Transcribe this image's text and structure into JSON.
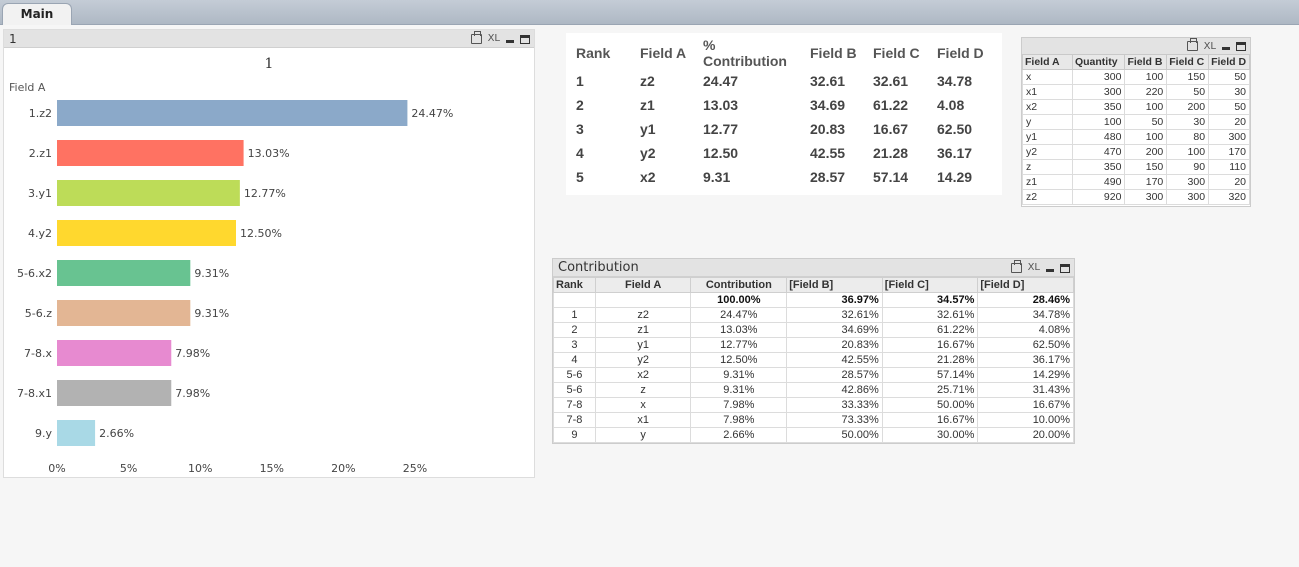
{
  "tabs": [
    {
      "label": "Main"
    }
  ],
  "chart_object": {
    "caption": "1",
    "icons": [
      "print-icon",
      "xl",
      "minimize-icon",
      "maximize-icon"
    ],
    "xl_label": "XL"
  },
  "chart_data": {
    "type": "bar",
    "orientation": "horizontal",
    "title": "1",
    "ylabel": "Field A",
    "categories": [
      "1.z2",
      "2.z1",
      "3.y1",
      "4.y2",
      "5-6.x2",
      "5-6.z",
      "7-8.x",
      "7-8.x1",
      "9.y"
    ],
    "values": [
      24.47,
      13.03,
      12.77,
      12.5,
      9.31,
      9.31,
      7.98,
      7.98,
      2.66
    ],
    "value_labels": [
      "24.47%",
      "13.03%",
      "12.77%",
      "12.50%",
      "9.31%",
      "9.31%",
      "7.98%",
      "7.98%",
      "2.66%"
    ],
    "colors": [
      "#8ba9c9",
      "#ff7262",
      "#bddc58",
      "#ffd82e",
      "#68c391",
      "#e3b694",
      "#e78ad0",
      "#b2b2b2",
      "#a9d9e6"
    ],
    "xlim": [
      0,
      25
    ],
    "xticks": [
      0,
      5,
      10,
      15,
      20,
      25
    ],
    "xtick_labels": [
      "0%",
      "5%",
      "10%",
      "15%",
      "20%",
      "25%"
    ],
    "grid": false,
    "legend": "none"
  },
  "straight_table": {
    "headers": [
      "Rank",
      "Field A",
      "% Contribution",
      "Field B",
      "Field C",
      "Field D"
    ],
    "rows": [
      [
        "1",
        "z2",
        "24.47",
        "32.61",
        "32.61",
        "34.78"
      ],
      [
        "2",
        "z1",
        "13.03",
        "34.69",
        "61.22",
        "4.08"
      ],
      [
        "3",
        "y1",
        "12.77",
        "20.83",
        "16.67",
        "62.50"
      ],
      [
        "4",
        "y2",
        "12.50",
        "42.55",
        "21.28",
        "36.17"
      ],
      [
        "5",
        "x2",
        "9.31",
        "28.57",
        "57.14",
        "14.29"
      ]
    ]
  },
  "small_table": {
    "xl_label": "XL",
    "headers": [
      "Field A",
      "Quantity",
      "Field B",
      "Field C",
      "Field D"
    ],
    "rows": [
      [
        "x",
        "300",
        "100",
        "150",
        "50"
      ],
      [
        "x1",
        "300",
        "220",
        "50",
        "30"
      ],
      [
        "x2",
        "350",
        "100",
        "200",
        "50"
      ],
      [
        "y",
        "100",
        "50",
        "30",
        "20"
      ],
      [
        "y1",
        "480",
        "100",
        "80",
        "300"
      ],
      [
        "y2",
        "470",
        "200",
        "100",
        "170"
      ],
      [
        "z",
        "350",
        "150",
        "90",
        "110"
      ],
      [
        "z1",
        "490",
        "170",
        "300",
        "20"
      ],
      [
        "z2",
        "920",
        "300",
        "300",
        "320"
      ]
    ]
  },
  "contribution_table": {
    "caption": "Contribution",
    "xl_label": "XL",
    "headers": [
      "Rank",
      "Field A",
      "Contribution",
      "[Field B]",
      "[Field C]",
      "[Field D]"
    ],
    "totals": [
      "",
      "",
      "100.00%",
      "36.97%",
      "34.57%",
      "28.46%"
    ],
    "rows": [
      [
        "1",
        "z2",
        "24.47%",
        "32.61%",
        "32.61%",
        "34.78%"
      ],
      [
        "2",
        "z1",
        "13.03%",
        "34.69%",
        "61.22%",
        "4.08%"
      ],
      [
        "3",
        "y1",
        "12.77%",
        "20.83%",
        "16.67%",
        "62.50%"
      ],
      [
        "4",
        "y2",
        "12.50%",
        "42.55%",
        "21.28%",
        "36.17%"
      ],
      [
        "5-6",
        "x2",
        "9.31%",
        "28.57%",
        "57.14%",
        "14.29%"
      ],
      [
        "5-6",
        "z",
        "9.31%",
        "42.86%",
        "25.71%",
        "31.43%"
      ],
      [
        "7-8",
        "x",
        "7.98%",
        "33.33%",
        "50.00%",
        "16.67%"
      ],
      [
        "7-8",
        "x1",
        "7.98%",
        "73.33%",
        "16.67%",
        "10.00%"
      ],
      [
        "9",
        "y",
        "2.66%",
        "50.00%",
        "30.00%",
        "20.00%"
      ]
    ]
  }
}
